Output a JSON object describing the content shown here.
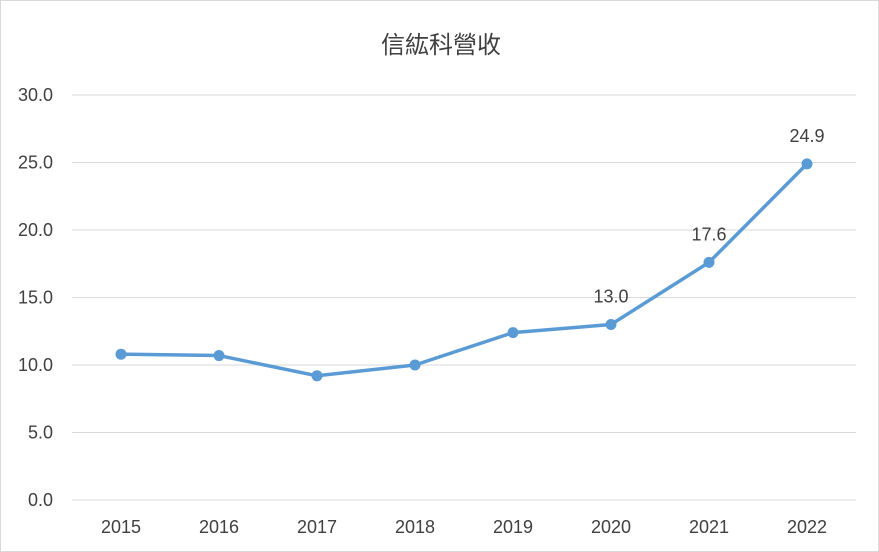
{
  "chart_data": {
    "type": "line",
    "title": "信紘科營收",
    "xlabel": "",
    "ylabel": "",
    "categories": [
      "2015",
      "2016",
      "2017",
      "2018",
      "2019",
      "2020",
      "2021",
      "2022"
    ],
    "series": [
      {
        "values": [
          10.8,
          10.7,
          9.2,
          10.0,
          12.4,
          13.0,
          17.6,
          24.9
        ],
        "color": "#5b9bd5"
      }
    ],
    "ylim": [
      0,
      30
    ],
    "yticks": [
      "0.0",
      "5.0",
      "10.0",
      "15.0",
      "20.0",
      "25.0",
      "30.0"
    ],
    "data_labels": [
      {
        "category": "2020",
        "text": "13.0"
      },
      {
        "category": "2021",
        "text": "17.6"
      },
      {
        "category": "2022",
        "text": "24.9"
      }
    ],
    "grid": true,
    "legend": "none",
    "colors": {
      "gridline": "#d9d9d9",
      "text": "#404040",
      "series": "#5b9bd5"
    }
  }
}
